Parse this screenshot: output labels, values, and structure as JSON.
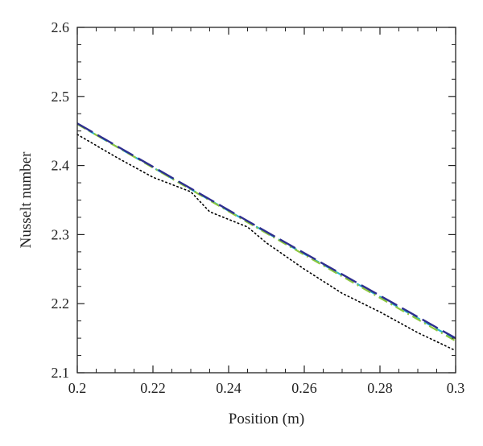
{
  "chart_data": {
    "type": "line",
    "title": "",
    "xlabel": "Position (m)",
    "ylabel": "Nusselt number",
    "xlim": [
      0.2,
      0.3
    ],
    "ylim": [
      2.1,
      2.6
    ],
    "xticks": [
      0.2,
      0.22,
      0.24,
      0.26,
      0.28,
      0.3
    ],
    "xtick_labels": [
      "0.2",
      "0.22",
      "0.24",
      "0.26",
      "0.28",
      "0.3"
    ],
    "yticks": [
      2.1,
      2.2,
      2.3,
      2.4,
      2.5,
      2.6
    ],
    "ytick_labels": [
      "2.1",
      "2.2",
      "2.3",
      "2.4",
      "2.5",
      "2.6"
    ],
    "grid": false,
    "legend": "none",
    "series": [
      {
        "color": "#000000",
        "style": "dotted",
        "x": [
          0.2,
          0.21,
          0.22,
          0.23,
          0.235,
          0.245,
          0.25,
          0.26,
          0.27,
          0.28,
          0.29,
          0.3
        ],
        "y": [
          2.445,
          2.413,
          2.383,
          2.362,
          2.333,
          2.311,
          2.288,
          2.25,
          2.215,
          2.188,
          2.158,
          2.132
        ]
      },
      {
        "color": "#2bb3c8",
        "style": "dashed",
        "x": [
          0.2,
          0.25,
          0.3
        ],
        "y": [
          2.46,
          2.303,
          2.148
        ]
      },
      {
        "color": "#8cc63f",
        "style": "dashdot",
        "x": [
          0.2,
          0.25,
          0.3
        ],
        "y": [
          2.46,
          2.302,
          2.146
        ]
      },
      {
        "color": "#2e2f8f",
        "style": "longdash",
        "x": [
          0.2,
          0.25,
          0.3
        ],
        "y": [
          2.461,
          2.304,
          2.15
        ]
      }
    ]
  }
}
